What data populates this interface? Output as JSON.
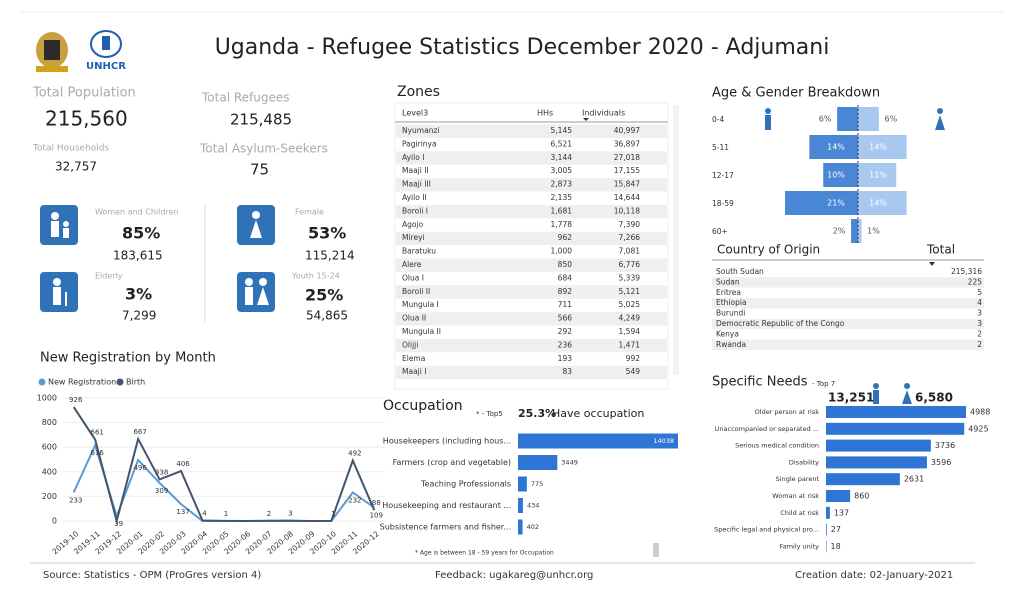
{
  "header": {
    "title": "Uganda - Refugee Statistics December 2020 - Adjumani",
    "logo_text": "UNHCR"
  },
  "kpis": {
    "total_population": {
      "label": "Total Population",
      "value": "215,560"
    },
    "total_refugees": {
      "label": "Total Refugees",
      "value": "215,485"
    },
    "total_households": {
      "label": "Total Households",
      "value": "32,757"
    },
    "total_asylum_seekers": {
      "label": "Total Asylum-Seekers",
      "value": "75"
    }
  },
  "groups": [
    {
      "label": "Women and Children",
      "percent": "85%",
      "count": "183,615"
    },
    {
      "label": "Female",
      "percent": "53%",
      "count": "115,214"
    },
    {
      "label": "Elderly",
      "percent": "3%",
      "count": "7,299"
    },
    {
      "label": "Youth 15-24",
      "percent": "25%",
      "count": "54,865"
    }
  ],
  "zones": {
    "title": "Zones",
    "columns": [
      "Level3",
      "HHs",
      "Individuals"
    ],
    "rows": [
      [
        "Nyumanzi",
        "5,145",
        "40,997"
      ],
      [
        "Pagirinya",
        "6,521",
        "36,897"
      ],
      [
        "Ayilo I",
        "3,144",
        "27,018"
      ],
      [
        "Maaji II",
        "3,005",
        "17,155"
      ],
      [
        "Maaji III",
        "2,873",
        "15,847"
      ],
      [
        "Ayilo II",
        "2,135",
        "14,644"
      ],
      [
        "Boroli I",
        "1,681",
        "10,118"
      ],
      [
        "Agojo",
        "1,778",
        "7,390"
      ],
      [
        "Mireyi",
        "962",
        "7,266"
      ],
      [
        "Baratuku",
        "1,000",
        "7,081"
      ],
      [
        "Alere",
        "850",
        "6,776"
      ],
      [
        "Olua I",
        "684",
        "5,339"
      ],
      [
        "Boroli II",
        "892",
        "5,121"
      ],
      [
        "Mungula I",
        "711",
        "5,025"
      ],
      [
        "Olua II",
        "566",
        "4,249"
      ],
      [
        "Mungula II",
        "292",
        "1,594"
      ],
      [
        "Olijji",
        "236",
        "1,471"
      ],
      [
        "Elema",
        "193",
        "992"
      ],
      [
        "Maaji I",
        "83",
        "549"
      ]
    ]
  },
  "origin": {
    "columns": [
      "Country of Origin",
      "Total"
    ],
    "rows": [
      [
        "South Sudan",
        "215,316"
      ],
      [
        "Sudan",
        "225"
      ],
      [
        "Eritrea",
        "5"
      ],
      [
        "Ethiopia",
        "4"
      ],
      [
        "Burundi",
        "3"
      ],
      [
        "Democratic Republic of the Congo",
        "3"
      ],
      [
        "Kenya",
        "2"
      ],
      [
        "Rwanda",
        "2"
      ]
    ]
  },
  "chart_data": [
    {
      "type": "line",
      "title": "New Registration by Month",
      "categories": [
        "2019-10",
        "2019-11",
        "2019-12",
        "2020-01",
        "2020-02",
        "2020-03",
        "2020-04",
        "2020-05",
        "2020-06",
        "2020-07",
        "2020-08",
        "2020-09",
        "2020-10",
        "2020-11",
        "2020-12"
      ],
      "series": [
        {
          "name": "New Registration",
          "color": "#5b9bd5",
          "values": [
            233,
            616,
            39,
            496,
            309,
            137,
            0,
            0,
            0,
            0,
            0,
            0,
            0,
            232,
            109
          ],
          "value_labels": [
            "233",
            "616",
            "39",
            "496",
            "309",
            "137",
            null,
            null,
            null,
            null,
            null,
            null,
            null,
            "232",
            "109"
          ]
        },
        {
          "name": "Birth",
          "color": "#44546a",
          "values": [
            926,
            661,
            0,
            667,
            338,
            406,
            4,
            1,
            0,
            2,
            3,
            0,
            1,
            492,
            88
          ],
          "value_labels": [
            "926",
            "661",
            null,
            "667",
            "338",
            "406",
            "4",
            "1",
            null,
            "2",
            "3",
            null,
            "1",
            "492",
            "88"
          ]
        }
      ],
      "ylim": [
        0,
        1000
      ],
      "yticks": [
        0,
        200,
        400,
        600,
        800,
        1000
      ],
      "grid": true,
      "legend": "top-left"
    },
    {
      "type": "pyramid",
      "title": "Age & Gender Breakdown",
      "categories": [
        "0-4",
        "5-11",
        "12-17",
        "18-59",
        "60+"
      ],
      "series": [
        {
          "color": "#4a86d6",
          "values": [
            6,
            14,
            10,
            21,
            2
          ],
          "value_labels": [
            "6%",
            "14%",
            "10%",
            "21%",
            "2%"
          ]
        },
        {
          "color": "#a9c8ef",
          "values": [
            6,
            14,
            11,
            14,
            1
          ],
          "value_labels": [
            "6%",
            "14%",
            "11%",
            "14%",
            "1%"
          ]
        }
      ]
    },
    {
      "type": "hbar",
      "title": "Occupation",
      "subtitle": "* - Top5",
      "highlight": "25.3%",
      "highlight_text": "Have occupation",
      "footnote": "* Age is between 18 - 59 years for Occupation",
      "color": "#2e75d6",
      "categories": [
        "Housekeepers (including hous...",
        "Farmers (crop and vegetable)",
        "Teaching Professionals",
        "Housekeeping and restaurant ...",
        "Subsistence farmers and fisher..."
      ],
      "values": [
        14038,
        3449,
        775,
        434,
        402
      ]
    },
    {
      "type": "hbar",
      "title": "Specific Needs",
      "subtitle": "- Top 7",
      "male_total": "13,251",
      "female_total": "6,580",
      "color": "#2e75d6",
      "categories": [
        "Older person at risk",
        "Unaccompanied or separated ...",
        "Serious medical condition",
        "Disability",
        "Single parent",
        "Woman at risk",
        "Child at risk",
        "Specific legal and physical pro...",
        "Family unity"
      ],
      "values": [
        4988,
        4925,
        3736,
        3596,
        2631,
        860,
        137,
        27,
        18
      ]
    }
  ],
  "footer": {
    "source": "Source: Statistics - OPM (ProGres version 4)",
    "feedback": "Feedback: ugakareg@unhcr.org",
    "created": "Creation date: 02-January-2021"
  }
}
